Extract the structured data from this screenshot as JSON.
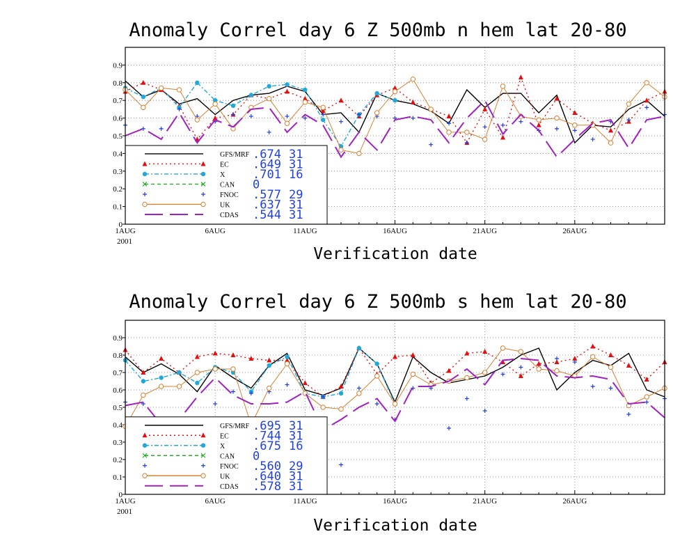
{
  "chart_data": [
    {
      "type": "line",
      "title": "Anomaly Correl  day 6  Z 500mb  n hem  lat 20-80",
      "xlabel": "Verification date",
      "ylabel": "",
      "x_start_label": "1AUG",
      "year_label": "2001",
      "x_tick_labels": [
        "1AUG",
        "6AUG",
        "11AUG",
        "16AUG",
        "21AUG",
        "26AUG"
      ],
      "y_tick_labels": [
        "0",
        "0.1",
        "0.2",
        "0.3",
        "0.4",
        "0.5",
        "0.6",
        "0.7",
        "0.8",
        "0.9"
      ],
      "x_range_days": [
        1,
        31
      ],
      "ylim": [
        0,
        1
      ],
      "grid": true,
      "legend_position": "bottom-left",
      "series": [
        {
          "name": "GFS/MRF",
          "score": ".674",
          "count": "31",
          "color": "#000000",
          "style": "solid",
          "marker": "none",
          "values": [
            0.81,
            0.72,
            0.76,
            0.68,
            0.71,
            0.62,
            0.7,
            0.73,
            0.74,
            0.78,
            0.75,
            0.62,
            0.63,
            0.52,
            0.74,
            0.7,
            0.68,
            0.64,
            0.57,
            0.76,
            0.66,
            0.74,
            0.74,
            0.63,
            0.73,
            0.46,
            0.56,
            0.55,
            0.65,
            0.7,
            0.61
          ]
        },
        {
          "name": "EC",
          "score": ".649",
          "count": "31",
          "color": "#e01010",
          "style": "dotted",
          "marker": "triangle",
          "values": [
            0.75,
            0.8,
            0.76,
            0.67,
            0.48,
            0.6,
            0.62,
            0.73,
            0.71,
            0.75,
            0.71,
            0.64,
            0.7,
            0.61,
            0.73,
            0.77,
            0.69,
            0.65,
            0.61,
            0.46,
            0.65,
            0.49,
            0.83,
            0.56,
            0.71,
            0.63,
            0.57,
            0.53,
            0.58,
            0.7,
            0.75
          ]
        },
        {
          "name": "X",
          "score": ".701",
          "count": "16",
          "color": "#20a8d8",
          "style": "dashdot",
          "marker": "circle",
          "values": [
            0.77,
            0.72,
            0.77,
            0.66,
            0.8,
            0.7,
            0.67,
            0.73,
            0.78,
            0.79,
            0.76,
            0.59,
            0.44,
            0.62,
            0.74,
            0.7,
            null,
            null,
            null,
            null,
            null,
            null,
            null,
            null,
            null,
            null,
            null,
            null,
            null,
            null,
            null
          ]
        },
        {
          "name": "CAN",
          "score": "0",
          "count": "",
          "color": "#20b020",
          "style": "dashed",
          "marker": "x",
          "values": []
        },
        {
          "name": "FNOC",
          "score": ".577",
          "count": "29",
          "color": "#1f3fe0",
          "style": "none",
          "marker": "plus",
          "values": [
            0.56,
            0.54,
            0.54,
            0.65,
            0.61,
            0.58,
            0.62,
            0.61,
            0.52,
            0.61,
            0.6,
            0.62,
            0.58,
            0.62,
            0.61,
            0.6,
            0.6,
            0.45,
            0.57,
            0.46,
            0.55,
            0.56,
            0.58,
            0.53,
            0.54,
            0.53,
            0.48,
            0.58,
            0.59,
            0.66,
            0.62
          ]
        },
        {
          "name": "UK",
          "score": ".637",
          "count": "31",
          "color": "#d88030",
          "style": "solid",
          "marker": "open-circle",
          "values": [
            0.76,
            0.66,
            0.77,
            0.76,
            0.59,
            0.68,
            0.54,
            0.66,
            0.71,
            0.57,
            0.69,
            0.66,
            0.42,
            0.4,
            0.63,
            0.75,
            0.82,
            0.65,
            0.52,
            0.52,
            0.48,
            0.78,
            0.61,
            0.59,
            0.6,
            0.56,
            0.56,
            0.46,
            0.68,
            0.8,
            0.72
          ]
        },
        {
          "name": "CDAS",
          "score": ".544",
          "count": "31",
          "color": "#a020c0",
          "style": "longdash",
          "marker": "none",
          "values": [
            0.5,
            0.54,
            0.48,
            0.63,
            0.46,
            0.59,
            0.55,
            0.65,
            0.66,
            0.52,
            0.62,
            0.56,
            0.38,
            0.52,
            0.42,
            0.59,
            0.61,
            0.59,
            0.46,
            0.6,
            0.7,
            0.51,
            0.62,
            0.53,
            0.38,
            0.48,
            0.57,
            0.59,
            0.43,
            0.59,
            0.61
          ]
        }
      ]
    },
    {
      "type": "line",
      "title": "Anomaly Correl  day 6  Z 500mb  s hem  lat 20-80",
      "xlabel": "Verification date",
      "ylabel": "",
      "x_start_label": "1AUG",
      "year_label": "2001",
      "x_tick_labels": [
        "1AUG",
        "6AUG",
        "11AUG",
        "16AUG",
        "21AUG",
        "26AUG"
      ],
      "y_tick_labels": [
        "0",
        "0.1",
        "0.2",
        "0.3",
        "0.4",
        "0.5",
        "0.6",
        "0.7",
        "0.8",
        "0.9"
      ],
      "x_range_days": [
        1,
        31
      ],
      "ylim": [
        0,
        1
      ],
      "grid": true,
      "legend_position": "bottom-left",
      "series": [
        {
          "name": "GFS/MRF",
          "score": ".695",
          "count": "31",
          "color": "#000000",
          "style": "solid",
          "marker": "none",
          "values": [
            0.79,
            0.7,
            0.75,
            0.69,
            0.59,
            0.74,
            0.67,
            0.61,
            0.74,
            0.81,
            0.6,
            0.57,
            0.61,
            0.84,
            0.75,
            0.53,
            0.79,
            0.7,
            0.64,
            0.66,
            0.68,
            0.73,
            0.8,
            0.84,
            0.6,
            0.7,
            0.77,
            0.74,
            0.81,
            0.6,
            0.56
          ]
        },
        {
          "name": "EC",
          "score": ".744",
          "count": "31",
          "color": "#e01010",
          "style": "dotted",
          "marker": "triangle",
          "values": [
            0.83,
            0.7,
            0.78,
            0.7,
            0.79,
            0.81,
            0.8,
            0.78,
            0.77,
            0.77,
            0.64,
            0.56,
            0.62,
            0.84,
            0.69,
            0.79,
            0.8,
            0.64,
            0.71,
            0.81,
            0.82,
            0.76,
            0.68,
            0.75,
            0.76,
            0.78,
            0.85,
            0.8,
            0.74,
            0.66,
            0.76
          ]
        },
        {
          "name": "X",
          "score": ".675",
          "count": "16",
          "color": "#20a8d8",
          "style": "dashdot",
          "marker": "circle",
          "values": [
            0.77,
            0.65,
            0.67,
            0.7,
            0.64,
            0.73,
            0.7,
            0.59,
            0.74,
            0.79,
            0.58,
            0.56,
            0.58,
            0.84,
            0.75,
            0.52,
            null,
            null,
            null,
            null,
            null,
            null,
            null,
            null,
            null,
            null,
            null,
            null,
            null,
            null,
            null
          ]
        },
        {
          "name": "CAN",
          "score": "0",
          "count": "",
          "color": "#20b020",
          "style": "dashed",
          "marker": "x",
          "values": []
        },
        {
          "name": "FNOC",
          "score": ".560",
          "count": "29",
          "color": "#1f3fe0",
          "style": "none",
          "marker": "plus",
          "values": [
            0.53,
            0.52,
            0.41,
            0.39,
            0.38,
            0.52,
            0.59,
            0.58,
            0.59,
            0.63,
            0.58,
            0.56,
            0.17,
            0.61,
            0.52,
            0.43,
            0.61,
            0.61,
            0.38,
            0.55,
            0.48,
            0.69,
            0.73,
            0.73,
            0.78,
            0.76,
            0.62,
            0.61,
            0.46,
            0.53,
            0.55
          ]
        },
        {
          "name": "UK",
          "score": ".640",
          "count": "31",
          "color": "#d88030",
          "style": "solid",
          "marker": "open-circle",
          "values": [
            0.39,
            0.57,
            0.62,
            0.62,
            0.7,
            0.72,
            0.72,
            0.4,
            0.61,
            0.75,
            0.58,
            0.5,
            0.49,
            0.58,
            0.68,
            0.52,
            0.69,
            0.63,
            0.65,
            0.67,
            0.7,
            0.84,
            0.82,
            0.72,
            0.71,
            0.68,
            0.79,
            0.73,
            0.51,
            0.56,
            0.61
          ]
        },
        {
          "name": "CDAS",
          "score": ".578",
          "count": "31",
          "color": "#a020c0",
          "style": "longdash",
          "marker": "none",
          "values": [
            0.51,
            0.53,
            0.4,
            0.43,
            0.56,
            0.67,
            0.57,
            0.52,
            0.52,
            0.53,
            0.59,
            0.37,
            0.43,
            0.5,
            0.55,
            0.42,
            0.62,
            0.62,
            0.65,
            0.72,
            0.63,
            0.77,
            0.78,
            0.77,
            0.68,
            0.67,
            0.68,
            0.66,
            0.52,
            0.53,
            0.44
          ]
        }
      ]
    }
  ]
}
